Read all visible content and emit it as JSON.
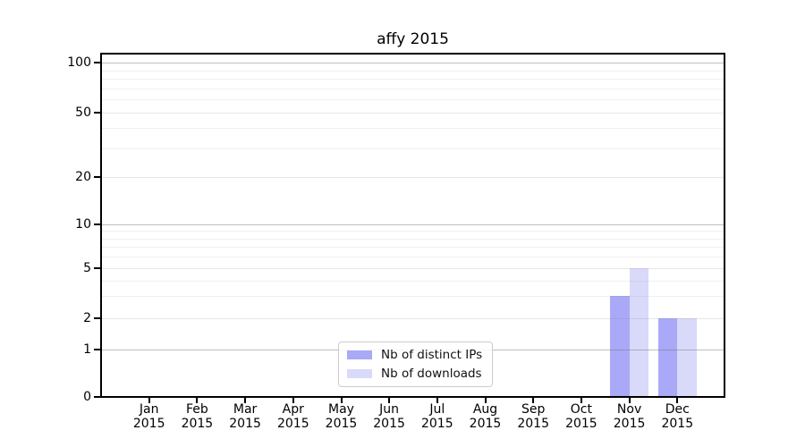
{
  "chart_data": {
    "type": "bar",
    "title": "affy 2015",
    "x_categories": [
      "Jan",
      "Feb",
      "Mar",
      "Apr",
      "May",
      "Jun",
      "Jul",
      "Aug",
      "Sep",
      "Oct",
      "Nov",
      "Dec"
    ],
    "x_year": "2015",
    "series": [
      {
        "name": "Nb of distinct IPs",
        "color": "#a9a9f7",
        "values": [
          0,
          0,
          0,
          0,
          0,
          0,
          0,
          0,
          0,
          0,
          3,
          2
        ]
      },
      {
        "name": "Nb of downloads",
        "color": "#d9d9fa",
        "values": [
          0,
          0,
          0,
          0,
          0,
          0,
          0,
          0,
          0,
          0,
          5,
          2
        ]
      }
    ],
    "y_axis": {
      "scale": "symlog",
      "tick_labels": [
        "0",
        "1",
        "2",
        "5",
        "10",
        "20",
        "50",
        "100"
      ],
      "tick_values": [
        0,
        1,
        2,
        5,
        10,
        20,
        50,
        100
      ],
      "gridlines_major": [
        1,
        10,
        100
      ],
      "gridlines_mid": [
        2,
        5,
        20,
        50
      ],
      "gridlines_minor": [
        3,
        4,
        6,
        7,
        8,
        9,
        30,
        40,
        60,
        70,
        80,
        90
      ],
      "range": [
        0,
        115
      ]
    },
    "legend": {
      "position": "lower center"
    },
    "grid": true
  }
}
